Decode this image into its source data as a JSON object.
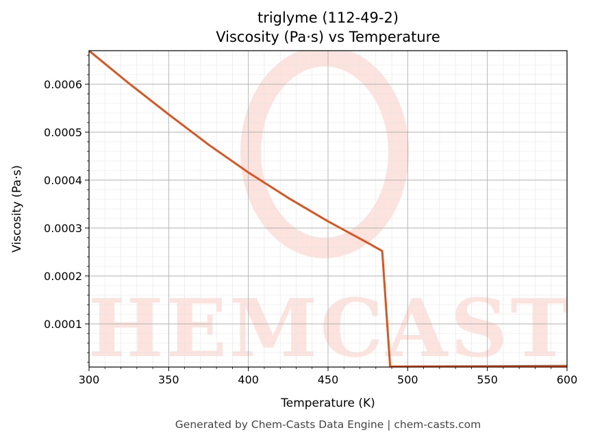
{
  "chart_data": {
    "type": "line",
    "title": "triglyme (112-49-2)",
    "subtitle": "Viscosity (Pa·s) vs Temperature",
    "xlabel": "Temperature (K)",
    "ylabel": "Viscosity (Pa·s)",
    "xlim": [
      300,
      600
    ],
    "ylim": [
      1e-05,
      0.00067
    ],
    "x_ticks": [
      300,
      350,
      400,
      450,
      500,
      550,
      600
    ],
    "x_tick_labels": [
      "300",
      "350",
      "400",
      "450",
      "500",
      "550",
      "600"
    ],
    "y_ticks": [
      0.0001,
      0.0002,
      0.0003,
      0.0004,
      0.0005,
      0.0006
    ],
    "y_tick_labels": [
      "0.0001",
      "0.0002",
      "0.0003",
      "0.0004",
      "0.0005",
      "0.0006"
    ],
    "grid": true,
    "minor_grid": true,
    "series": [
      {
        "color": "#d9541e",
        "x": [
          300,
          325,
          350,
          375,
          400,
          425,
          450,
          475,
          484,
          489,
          490,
          500,
          550,
          600
        ],
        "y": [
          0.00067,
          0.000602,
          0.000537,
          0.000474,
          0.000416,
          0.000363,
          0.000314,
          0.000269,
          0.000252,
          1e-05,
          1.1e-05,
          1.12e-05,
          1.18e-05,
          1.25e-05
        ]
      }
    ]
  },
  "watermark": {
    "text": "CHEMCASTS",
    "color": "#fde3de"
  },
  "footer": {
    "text": "Generated by Chem-Casts Data Engine | chem-casts.com"
  }
}
